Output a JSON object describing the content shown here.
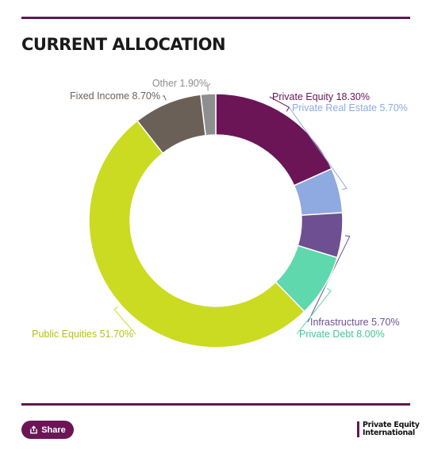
{
  "header": {
    "title": "CURRENT ALLOCATION"
  },
  "footer": {
    "share_label": "Share",
    "brand_line1": "Private Equity",
    "brand_line2": "International"
  },
  "chart_data": {
    "type": "pie",
    "donut": true,
    "title": "CURRENT ALLOCATION",
    "unit": "%",
    "slices": [
      {
        "name": "Private Equity",
        "label": "Private Equity 18.30%",
        "value": 18.3,
        "color": "#6b1557"
      },
      {
        "name": "Private Real Estate",
        "label": "Private Real Estate 5.70%",
        "value": 5.7,
        "color": "#8eaae0"
      },
      {
        "name": "Infrastructure",
        "label": "Infrastructure 5.70%",
        "value": 5.7,
        "color": "#6e4f92"
      },
      {
        "name": "Private Debt",
        "label": "Private Debt 8.00%",
        "value": 8.0,
        "color": "#5fd8ad"
      },
      {
        "name": "Public Equities",
        "label": "Public Equities 51.70%",
        "value": 51.7,
        "color": "#cbdb22"
      },
      {
        "name": "Fixed Income",
        "label": "Fixed Income 8.70%",
        "value": 8.7,
        "color": "#6b6057"
      },
      {
        "name": "Other",
        "label": "Other 1.90%",
        "value": 1.9,
        "color": "#8e8e8e"
      }
    ]
  }
}
